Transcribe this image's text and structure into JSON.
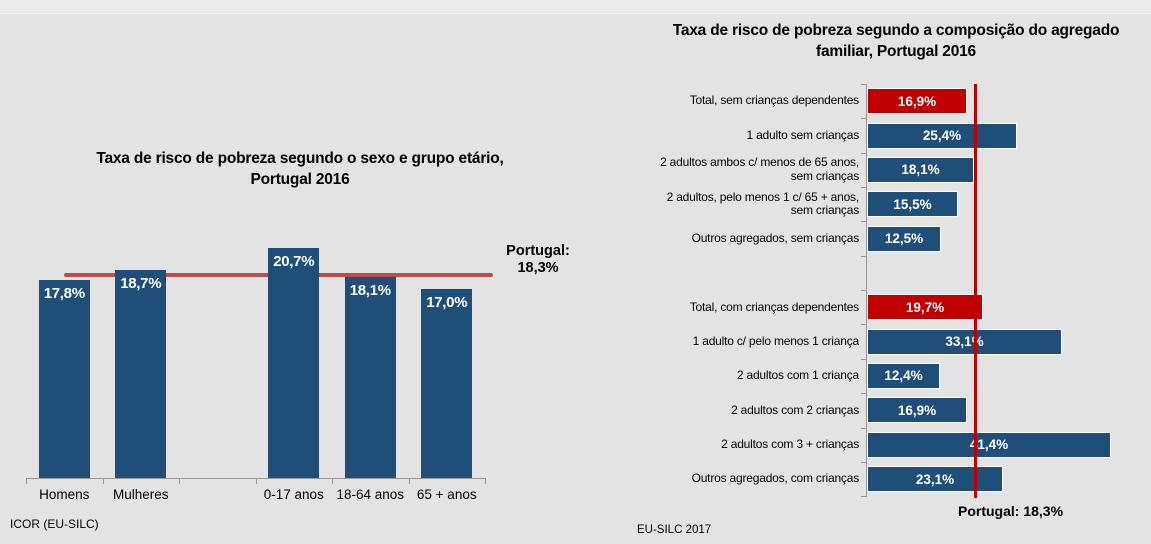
{
  "page": {
    "background": "#e3e3e3"
  },
  "chart_data": [
    {
      "type": "bar",
      "title": "Taxa de risco de pobreza segundo o sexo e grupo etário, Portugal 2016",
      "title_lines": [
        "Taxa de risco de pobreza segundo o sexo e grupo etário,",
        "Portugal 2016"
      ],
      "points": [
        {
          "label": "Homens",
          "group": "sexo",
          "value": 17.8,
          "value_label": "17,8%"
        },
        {
          "label": "Mulheres",
          "group": "sexo",
          "value": 18.7,
          "value_label": "18,7%"
        },
        {
          "label": "0-17 anos",
          "group": "grupo etário",
          "value": 20.7,
          "value_label": "20,7%"
        },
        {
          "label": "18-64 anos",
          "group": "grupo etário",
          "value": 18.1,
          "value_label": "18,1%"
        },
        {
          "label": "65 + anos",
          "group": "grupo etário",
          "value": 17.0,
          "value_label": "17,0%"
        }
      ],
      "reference_line": {
        "value": 18.3,
        "label": "Portugal: 18,3%",
        "label_lines": [
          "Portugal:",
          "18,3%"
        ]
      },
      "colors": {
        "bar": "#1F4E79",
        "reference_line": "#BE4B48",
        "axis": "#999999",
        "value_label": "#ffffff"
      },
      "ylim": [
        0,
        22
      ],
      "grid": false,
      "legend": "none",
      "source": "ICOR (EU-SILC)"
    },
    {
      "type": "bar-horizontal",
      "title": "Taxa de risco de pobreza segundo a composição do agregado familiar, Portugal 2016",
      "title_lines": [
        "Taxa de risco de pobreza segundo a composição do agregado",
        "familiar, Portugal 2016"
      ],
      "rows": [
        {
          "label": "Total, sem crianças dependentes",
          "label_lines": [
            "Total, sem crianças dependentes"
          ],
          "group": "sem crianças",
          "value": 16.9,
          "value_label": "16,9%",
          "highlight": true
        },
        {
          "label": "1 adulto sem crianças",
          "label_lines": [
            "1 adulto sem crianças"
          ],
          "group": "sem crianças",
          "value": 25.4,
          "value_label": "25,4%",
          "highlight": false
        },
        {
          "label": "2 adultos ambos c/ menos de 65 anos, sem crianças",
          "label_lines": [
            "2 adultos ambos c/ menos de 65 anos,",
            "sem crianças"
          ],
          "group": "sem crianças",
          "value": 18.1,
          "value_label": "18,1%",
          "highlight": false
        },
        {
          "label": "2 adultos, pelo menos 1 c/ 65 + anos, sem crianças",
          "label_lines": [
            "2 adultos, pelo menos 1 c/ 65 + anos,",
            "sem crianças"
          ],
          "group": "sem crianças",
          "value": 15.5,
          "value_label": "15,5%",
          "highlight": false
        },
        {
          "label": "Outros agregados, sem crianças",
          "label_lines": [
            "Outros agregados, sem crianças"
          ],
          "group": "sem crianças",
          "value": 12.5,
          "value_label": "12,5%",
          "highlight": false
        },
        {
          "label": "Total, com crianças dependentes",
          "label_lines": [
            "Total, com crianças dependentes"
          ],
          "group": "com crianças",
          "value": 19.7,
          "value_label": "19,7%",
          "highlight": true
        },
        {
          "label": "1 adulto c/ pelo menos 1 criança",
          "label_lines": [
            "1 adulto c/ pelo menos 1 criança"
          ],
          "group": "com crianças",
          "value": 33.1,
          "value_label": "33,1%",
          "highlight": false
        },
        {
          "label": "2 adultos com 1 criança",
          "label_lines": [
            "2 adultos com 1 criança"
          ],
          "group": "com crianças",
          "value": 12.4,
          "value_label": "12,4%",
          "highlight": false
        },
        {
          "label": "2 adultos com 2 crianças",
          "label_lines": [
            "2 adultos com 2 crianças"
          ],
          "group": "com crianças",
          "value": 16.9,
          "value_label": "16,9%",
          "highlight": false
        },
        {
          "label": "2 adultos com 3 + crianças",
          "label_lines": [
            "2 adultos com 3 + crianças"
          ],
          "group": "com crianças",
          "value": 41.4,
          "value_label": "41,4%",
          "highlight": false
        },
        {
          "label": "Outros agregados, com crianças",
          "label_lines": [
            "Outros agregados, com crianças"
          ],
          "group": "com crianças",
          "value": 23.1,
          "value_label": "23,1%",
          "highlight": false
        }
      ],
      "reference_line": {
        "value": 18.3,
        "label": "Portugal: 18,3%"
      },
      "colors": {
        "bar": "#1F4E79",
        "highlight": "#C00000",
        "reference_line": "#C00000",
        "axis": "#999999",
        "value_label": "#ffffff"
      },
      "xlim": [
        0,
        45
      ],
      "grid": false,
      "legend": "none",
      "source": "EU-SILC 2017"
    }
  ]
}
